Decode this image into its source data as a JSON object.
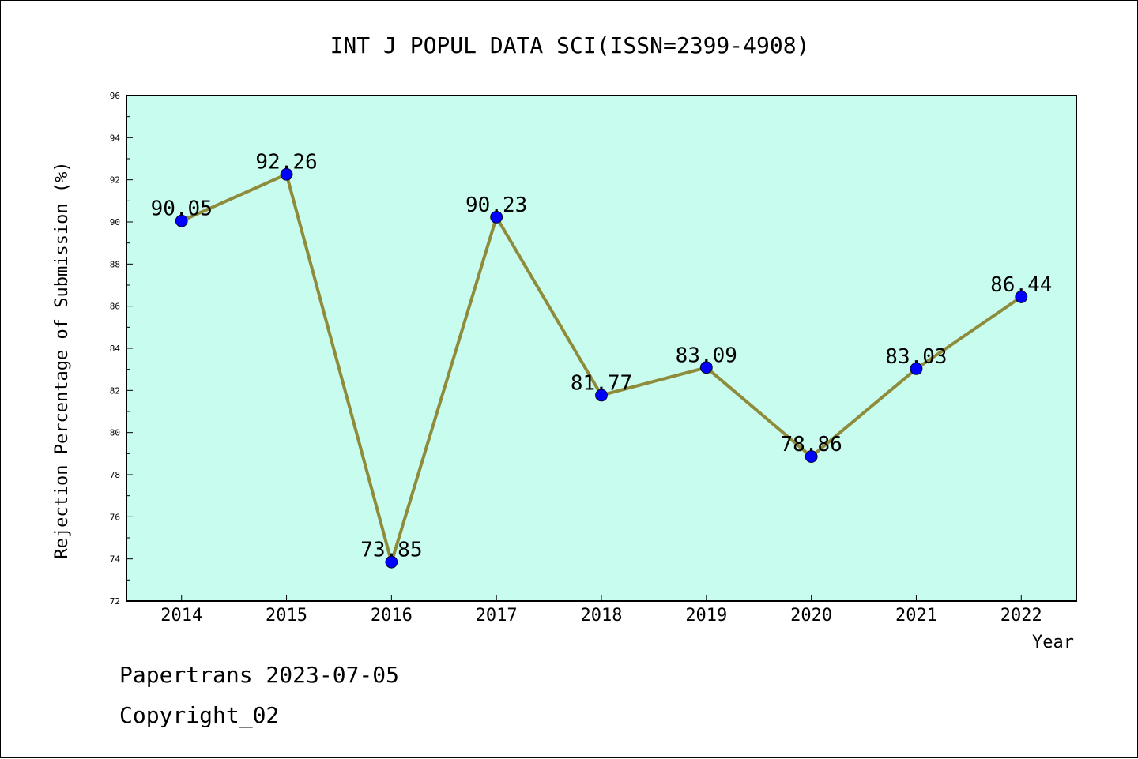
{
  "chart_data": {
    "type": "line",
    "title": "INT J POPUL DATA SCI(ISSN=2399-4908)",
    "xlabel": "Year",
    "ylabel": "Rejection Percentage of Submission (%)",
    "categories": [
      "2014",
      "2015",
      "2016",
      "2017",
      "2018",
      "2019",
      "2020",
      "2021",
      "2022"
    ],
    "values": [
      90.05,
      92.26,
      73.85,
      90.23,
      81.77,
      83.09,
      78.86,
      83.03,
      86.44
    ],
    "data_labels": [
      "90.05",
      "92.26",
      "73.85",
      "90.23",
      "81.77",
      "83.09",
      "78.86",
      "83.03",
      "86.44"
    ],
    "ylim": [
      72,
      96
    ],
    "y_ticks": [
      "72",
      "74",
      "76",
      "78",
      "80",
      "82",
      "84",
      "86",
      "88",
      "90",
      "92",
      "94",
      "96"
    ],
    "grid": false,
    "legend": "none"
  },
  "colors": {
    "plot_background": "#c8fcee",
    "line": "#8e8b3a",
    "marker": "#0000ff"
  },
  "footer": {
    "line1": "Papertrans 2023-07-05",
    "line2": "Copyright_02"
  }
}
